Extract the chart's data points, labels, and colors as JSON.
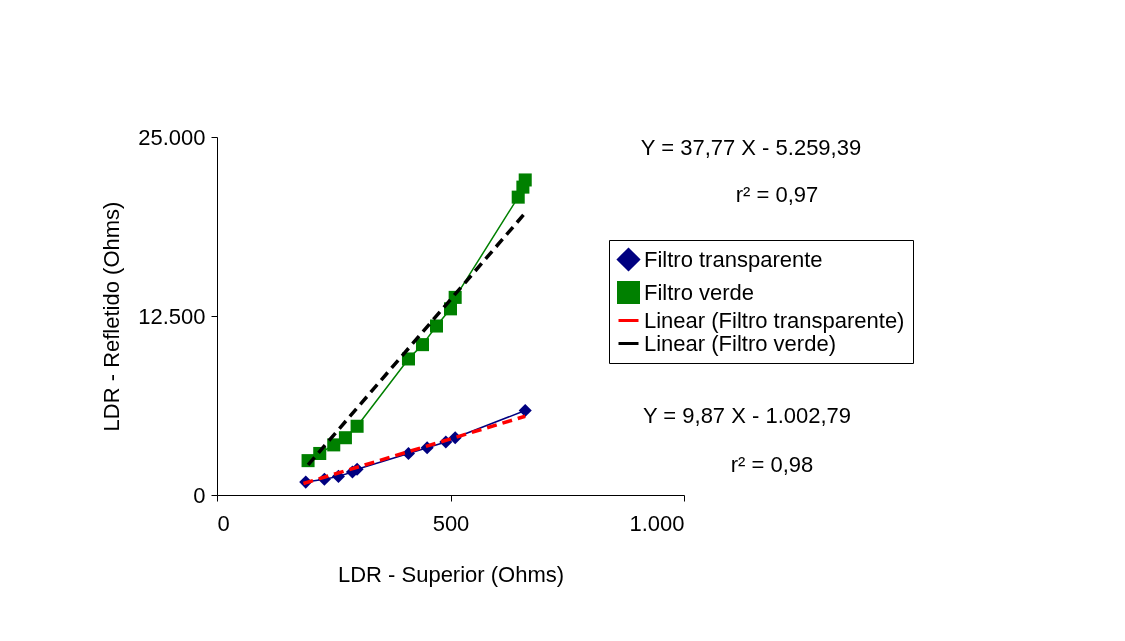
{
  "chart_data": {
    "type": "line",
    "xlabel": "LDR - Superior (Ohms)",
    "ylabel": "LDR - Refletido (Ohms)",
    "xlim": [
      0,
      1000
    ],
    "xticks": [
      0,
      500,
      {
        "value": 1000,
        "label": "1.000"
      }
    ],
    "ylim": [
      0,
      25000
    ],
    "yticks": [
      0,
      {
        "value": 12500,
        "label": "12.500"
      },
      {
        "value": 25000,
        "label": "25.000"
      }
    ],
    "legend": "right",
    "grid": false,
    "annotations": [
      "Y = 37,77 X - 5.259,39",
      "r² = 0,97",
      "Y = 9,87 X - 1.002,79",
      "r² = 0,98"
    ],
    "series": [
      {
        "name": "Filtro transparente",
        "color": "#000080",
        "marker": "diamond",
        "x": [
          190,
          230,
          260,
          290,
          300,
          410,
          450,
          490,
          510,
          660
        ],
        "values": [
          900,
          1100,
          1300,
          1600,
          1800,
          2900,
          3300,
          3700,
          4000,
          5900
        ]
      },
      {
        "name": "Filtro verde",
        "color": "#008000",
        "marker": "square",
        "x": [
          195,
          220,
          250,
          275,
          300,
          410,
          440,
          470,
          500,
          510,
          645,
          655,
          660
        ],
        "values": [
          2400,
          2900,
          3500,
          4000,
          4800,
          9500,
          10500,
          11800,
          13000,
          13800,
          20800,
          21500,
          22000
        ]
      },
      {
        "name": "Linear (Filtro transparente)",
        "color": "#ff0000",
        "marker": "none",
        "line_style": "dashed",
        "x": [
          185,
          660
        ],
        "values": [
          800,
          5500
        ]
      },
      {
        "name": "Linear (Filtro verde)",
        "color": "#000000",
        "marker": "none",
        "line_style": "dashed",
        "x": [
          195,
          660
        ],
        "values": [
          2100,
          19700
        ]
      }
    ]
  }
}
